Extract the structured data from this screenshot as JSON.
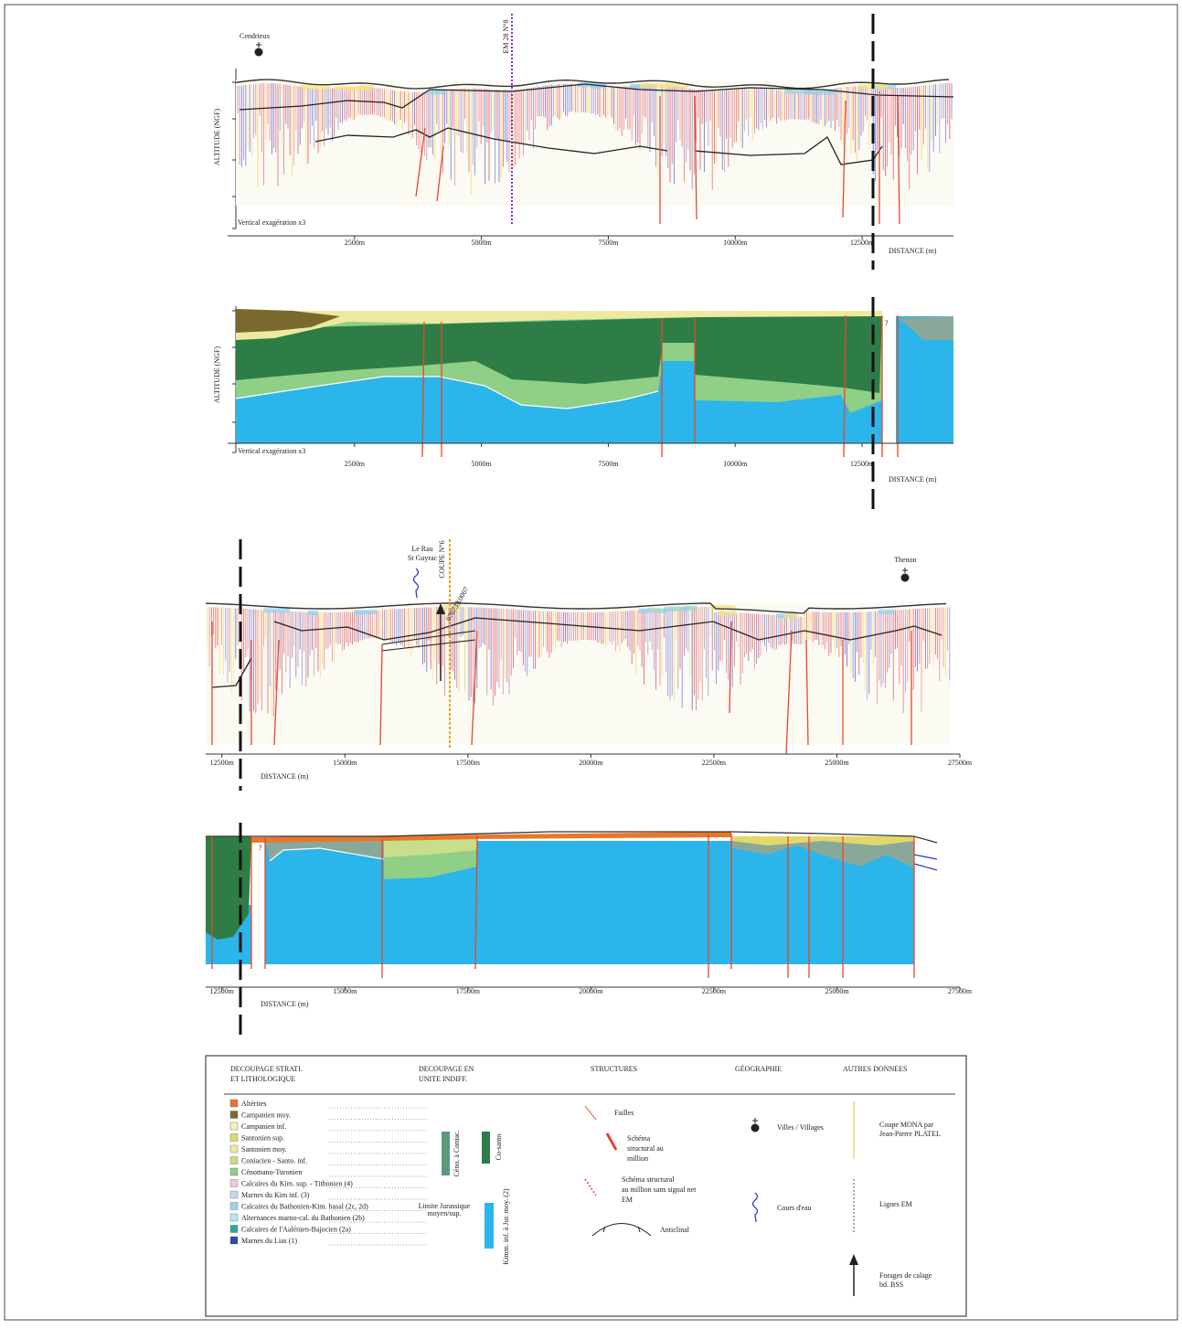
{
  "panels": [
    {
      "town": "Cendrieux",
      "em_line": "EM 28 N°8",
      "y_axis": "ALTITUDE (NGF)",
      "exaggeration": "Vertical exagération x3",
      "x_axis": "DISTANCE (m)",
      "xlim": [
        0,
        14300
      ],
      "xticks": [
        {
          "value": 2500,
          "label": "2500m"
        },
        {
          "value": 5000,
          "label": "5000m"
        },
        {
          "value": 7500,
          "label": "7500m"
        },
        {
          "value": 10000,
          "label": "10000m"
        },
        {
          "value": 12500,
          "label": "12500m"
        }
      ]
    },
    {
      "y_axis": "ALTITUDE (NGF)",
      "exaggeration": "Vertical exagération x3",
      "x_axis": "DISTANCE (m)",
      "unknown": "?",
      "xlim": [
        0,
        14300
      ],
      "xticks": [
        {
          "value": 2500,
          "label": "2500m"
        },
        {
          "value": 5000,
          "label": "5000m"
        },
        {
          "value": 7500,
          "label": "7500m"
        },
        {
          "value": 10000,
          "label": "10000m"
        },
        {
          "value": 12500,
          "label": "12500m"
        }
      ]
    },
    {
      "river": [
        "Le Rau",
        "St Guyrac"
      ],
      "section": "COUPE N°6",
      "borehole": "07073X0007",
      "town": "Thenon",
      "x_axis": "DISTANCE (m)",
      "xlim": [
        12170,
        27500
      ],
      "xticks": [
        {
          "value": 12500,
          "label": "12500m"
        },
        {
          "value": 15000,
          "label": "15000m"
        },
        {
          "value": 17500,
          "label": "17500m"
        },
        {
          "value": 20000,
          "label": "20000m"
        },
        {
          "value": 22500,
          "label": "22500m"
        },
        {
          "value": 25000,
          "label": "25000m"
        },
        {
          "value": 27500,
          "label": "27500m"
        }
      ]
    },
    {
      "x_axis": "DISTANCE (m)",
      "unknown": "?",
      "xlim": [
        12170,
        27500
      ],
      "xticks": [
        {
          "value": 12500,
          "label": "12500m"
        },
        {
          "value": 15000,
          "label": "15000m"
        },
        {
          "value": 17500,
          "label": "17500m"
        },
        {
          "value": 20000,
          "label": "20000m"
        },
        {
          "value": 22500,
          "label": "22500m"
        },
        {
          "value": 25000,
          "label": "25000m"
        },
        {
          "value": 27500,
          "label": "27500m"
        }
      ]
    }
  ],
  "legend": {
    "headers": [
      [
        "DECOUPAGE STRATI.",
        "ET LITHOLOGIQUE"
      ],
      [
        "DECOUPAGE EN",
        "UNITE INDIFF."
      ],
      [
        "STRUCTURES"
      ],
      [
        "GÉOGRAPHIE"
      ],
      [
        "AUTRES DONNEES"
      ]
    ],
    "items": [
      {
        "label": "Altérites",
        "color": "#e8772a"
      },
      {
        "label": "Campanien moy.",
        "color": "#7a6a2e"
      },
      {
        "label": "Campanien inf.",
        "color": "#f3eec0"
      },
      {
        "label": "Santonien sup.",
        "color": "#e2d86a"
      },
      {
        "label": "Santonien moy.",
        "color": "#eee9a0"
      },
      {
        "label": "Coniacien - Santo. inf.",
        "color": "#c8de8a"
      },
      {
        "label": "Cénomano-Turonien",
        "color": "#8fcf86"
      },
      {
        "label": "Calcaires du Kim. sup. - Tithonien (4)",
        "color": "#f2c9d8"
      },
      {
        "label": "Marnes du Kim inf. (3)",
        "color": "#c9d9ee"
      },
      {
        "label": "Calcaires du Bathonien-Kim. basal (2c, 2d)",
        "color": "#9fd3f0"
      },
      {
        "label": "Alternances marno-cal. du Bathonien (2b)",
        "color": "#bfe3f4"
      },
      {
        "label": "Calcaires de l'Aalénien-Bajocien (2a)",
        "color": "#2ea6a8"
      },
      {
        "label": "Marnes du Lias (1)",
        "color": "#2b4da0"
      }
    ],
    "units": {
      "ceno": "Céno. à Coniac.",
      "cosanto": "Co-santo",
      "limit": [
        "Limite Jurassique",
        "moyen/sup."
      ],
      "kimm": "Kimm. inf. à Jur. moy. (2)"
    },
    "structures": {
      "faults": "Failles",
      "schema": [
        "Schéma",
        "structural au",
        "million"
      ],
      "schema_nosignal": [
        "Schéma structural",
        "au million sans signal net",
        "EM"
      ],
      "anticline": "Anticlinal"
    },
    "geography": {
      "towns": "Villes / Villages",
      "rivers": "Cours d'eau"
    },
    "other": {
      "mona": [
        "Coupe MONA par",
        "Jean-Pierre PLATEL"
      ],
      "em": "Lignes EM",
      "boreholes": [
        "Forages de calage",
        "bd. BSS"
      ]
    }
  }
}
